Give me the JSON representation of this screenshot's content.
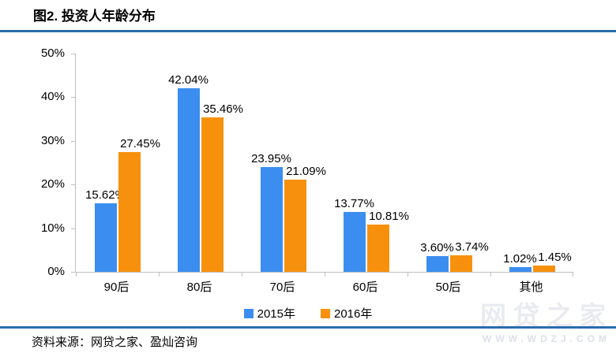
{
  "title": "图2. 投资人年龄分布",
  "source_note": "资料来源：网贷之家、盈灿咨询",
  "watermark": {
    "text": "网贷之家",
    "subtext": "WWW.WDZJ.COM"
  },
  "colors": {
    "series_2015": "#3B8EEF",
    "series_2016": "#F7910D",
    "divider_blue": "#2B6CAD",
    "axis_gray": "#BFBFBF"
  },
  "chart_data": {
    "type": "bar",
    "title": "图2. 投资人年龄分布",
    "categories": [
      "90后",
      "80后",
      "70后",
      "60后",
      "50后",
      "其他"
    ],
    "series": [
      {
        "name": "2015年",
        "color": "#3B8EEF",
        "values": [
          15.62,
          42.04,
          23.95,
          13.77,
          3.6,
          1.02
        ],
        "labels": [
          "15.62%",
          "42.04%",
          "23.95%",
          "13.77%",
          "3.60%",
          "1.02%"
        ]
      },
      {
        "name": "2016年",
        "color": "#F7910D",
        "values": [
          27.45,
          35.46,
          21.09,
          10.81,
          3.74,
          1.45
        ],
        "labels": [
          "27.45%",
          "35.46%",
          "21.09%",
          "10.81%",
          "3.74%",
          "1.45%"
        ]
      }
    ],
    "y_ticks": [
      "50%",
      "40%",
      "30%",
      "20%",
      "10%",
      "0%"
    ],
    "ylim": [
      0,
      50
    ],
    "xlabel": "",
    "ylabel": "",
    "grid": false,
    "legend_position": "bottom",
    "data_labels": true
  }
}
